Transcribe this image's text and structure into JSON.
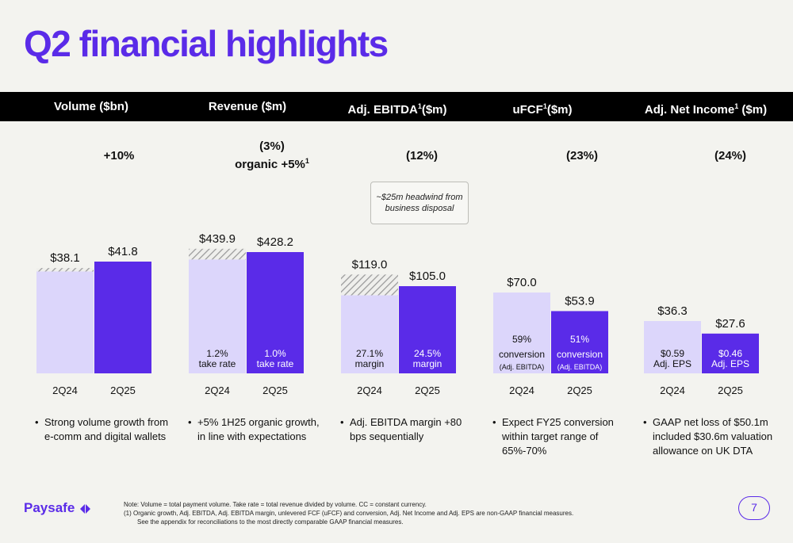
{
  "title": "Q2 financial highlights",
  "colors": {
    "light": "#dcd6fb",
    "dark": "#5a2be8",
    "hatch": "#9a9a9a"
  },
  "headers": [
    {
      "text": "Volume ($bn)",
      "sup": ""
    },
    {
      "text": "Revenue ($m)",
      "sup": ""
    },
    {
      "text": "Adj. EBITDA",
      "sup": "1",
      "after": "($m)"
    },
    {
      "text": "uFCF",
      "sup": "1",
      "after": "($m)"
    },
    {
      "text": "Adj. Net Income",
      "sup": "1",
      "after": " ($m)"
    }
  ],
  "changes": {
    "volume": "+10%",
    "revenue_line1": "(3%)",
    "revenue_line2": "organic +5%",
    "revenue_sup": "1",
    "ebitda": "(12%)",
    "ufcf": "(23%)",
    "netincome": "(24%)"
  },
  "headwind_note": "~$25m headwind from business disposal",
  "chart_data": [
    {
      "type": "bar",
      "title": "Volume ($bn)",
      "categories": [
        "2Q24",
        "2Q25"
      ],
      "values": [
        38.1,
        41.8
      ],
      "labels": [
        "$38.1",
        "$41.8"
      ],
      "hatch_top": 38.1,
      "inner_labels": [
        [
          "",
          ""
        ],
        [
          "",
          ""
        ]
      ],
      "change": "+10%"
    },
    {
      "type": "bar",
      "title": "Revenue ($m)",
      "categories": [
        "2Q24",
        "2Q25"
      ],
      "values": [
        439.9,
        428.2
      ],
      "labels": [
        "$439.9",
        "$428.2"
      ],
      "hatched_portion": true,
      "inner_labels": [
        [
          "1.2%",
          "take rate"
        ],
        [
          "1.0%",
          "take rate"
        ]
      ]
    },
    {
      "type": "bar",
      "title": "Adj. EBITDA ($m)",
      "categories": [
        "2Q24",
        "2Q25"
      ],
      "values": [
        119.0,
        105.0
      ],
      "labels": [
        "$119.0",
        "$105.0"
      ],
      "hatched_portion": true,
      "inner_labels": [
        [
          "27.1%",
          "margin"
        ],
        [
          "24.5%",
          "margin"
        ]
      ]
    },
    {
      "type": "bar",
      "title": "uFCF ($m)",
      "categories": [
        "2Q24",
        "2Q25"
      ],
      "values": [
        70.0,
        53.9
      ],
      "labels": [
        "$70.0",
        "$53.9"
      ],
      "inner_labels": [
        [
          "59%",
          "conversion",
          "(Adj. EBITDA)"
        ],
        [
          "51%",
          "conversion",
          "(Adj. EBITDA)"
        ]
      ]
    },
    {
      "type": "bar",
      "title": "Adj. Net Income ($m)",
      "categories": [
        "2Q24",
        "2Q25"
      ],
      "values": [
        36.3,
        27.6
      ],
      "labels": [
        "$36.3",
        "$27.6"
      ],
      "inner_labels": [
        [
          "$0.59",
          "Adj. EPS"
        ],
        [
          "$0.46",
          "Adj. EPS"
        ]
      ]
    }
  ],
  "bullets": [
    "Strong volume growth from e-comm and digital wallets",
    "+5% 1H25 organic growth, in line with expectations",
    "Adj. EBITDA margin +80 bps sequentially",
    "Expect FY25 conversion within target range of 65%-70%",
    "GAAP net loss of $50.1m included $30.6m valuation allowance on UK DTA"
  ],
  "logo": "Paysafe",
  "footnote_line1": "Note: Volume = total payment volume. Take rate = total revenue divided by volume. CC = constant currency.",
  "footnote_line2": "(1)    Organic growth, Adj. EBITDA, Adj. EBITDA margin, unlevered FCF (uFCF) and conversion, Adj. Net Income and Adj. EPS are non-GAAP financial measures.",
  "footnote_line3": "See the appendix for reconciliations to the most directly comparable GAAP financial measures.",
  "page_number": "7"
}
